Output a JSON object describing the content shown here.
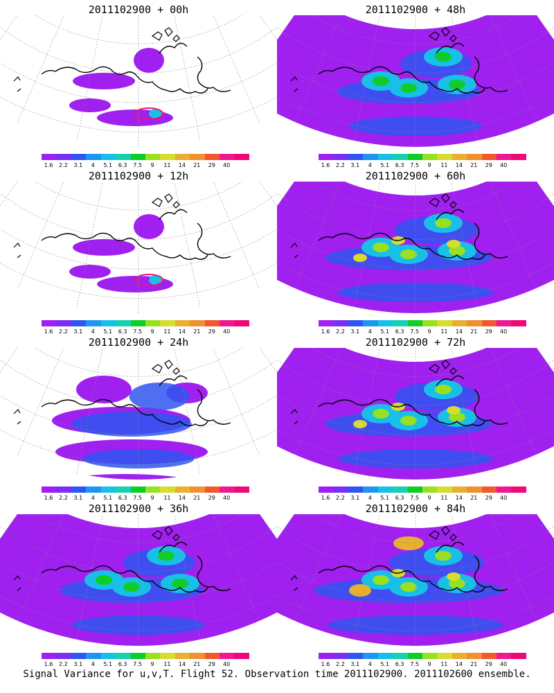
{
  "panels": [
    {
      "title": "2011102900 + 00h",
      "intensity": 0
    },
    {
      "title": "2011102900 + 48h",
      "intensity": 2
    },
    {
      "title": "2011102900 + 12h",
      "intensity": 0
    },
    {
      "title": "2011102900 + 60h",
      "intensity": 3
    },
    {
      "title": "2011102900 + 24h",
      "intensity": 1
    },
    {
      "title": "2011102900 + 72h",
      "intensity": 3
    },
    {
      "title": "2011102900 + 36h",
      "intensity": 2
    },
    {
      "title": "2011102900 + 84h",
      "intensity": 4
    }
  ],
  "colorbar": {
    "labels": [
      "1.6",
      "2.2",
      "3.1",
      "4",
      "5.1",
      "6.3",
      "7.5",
      "9",
      "11",
      "14",
      "21",
      "29",
      "40"
    ],
    "colors": [
      "#a020f0",
      "#7a30f0",
      "#2f56f0",
      "#1e96f0",
      "#18c0e8",
      "#16d0b0",
      "#10cc28",
      "#98e020",
      "#d8dc30",
      "#e8b030",
      "#f09030",
      "#f05830",
      "#f01890",
      "#f00878"
    ]
  },
  "caption": "Signal Variance for u,v,T. Flight 52. Observation time 2011102900. 2011102600 ensemble."
}
